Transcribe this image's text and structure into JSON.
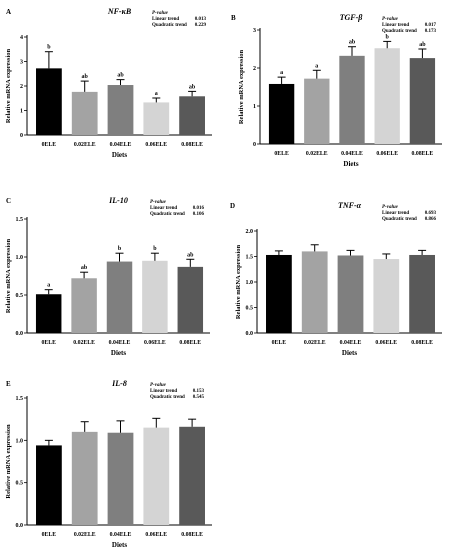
{
  "chart_data": [
    {
      "type": "bar",
      "panel_letter": "A",
      "title": "NF-κB",
      "ylabel": "Relative mRNA expression",
      "xlabel": "Diets",
      "categories": [
        "0ELE",
        "0.02ELE",
        "0.04ELE",
        "0.06ELE",
        "0.08ELE"
      ],
      "values": [
        2.72,
        1.76,
        2.04,
        1.33,
        1.58
      ],
      "errors": [
        0.68,
        0.44,
        0.22,
        0.18,
        0.2
      ],
      "letters": [
        "b",
        "ab",
        "ab",
        "a",
        "ab"
      ],
      "ylim": [
        0,
        4
      ],
      "yticks": [
        "0",
        "1",
        "2",
        "3",
        "4"
      ],
      "pvalue": {
        "header": "P-value",
        "rows": [
          {
            "label": "Linear trend",
            "value": "0.013"
          },
          {
            "label": "Quadratic trend",
            "value": "0.229"
          }
        ]
      }
    },
    {
      "type": "bar",
      "panel_letter": "B",
      "title": "TGF-β",
      "ylabel": "Relative mRNA expression",
      "xlabel": "Diets",
      "categories": [
        "0ELE",
        "0.02ELE",
        "0.04ELE",
        "0.06ELE",
        "0.08ELE"
      ],
      "values": [
        1.58,
        1.72,
        2.32,
        2.52,
        2.26
      ],
      "errors": [
        0.18,
        0.22,
        0.24,
        0.18,
        0.24
      ],
      "letters": [
        "a",
        "a",
        "ab",
        "b",
        "ab"
      ],
      "ylim": [
        0,
        3
      ],
      "yticks": [
        "0",
        "1",
        "2",
        "3"
      ],
      "pvalue": {
        "header": "P-value",
        "rows": [
          {
            "label": "Linear trend",
            "value": "0.017"
          },
          {
            "label": "Quadratic trend",
            "value": "0.173"
          }
        ]
      }
    },
    {
      "type": "bar",
      "panel_letter": "C",
      "title": "IL-10",
      "ylabel": "Relative mRNA expression",
      "xlabel": "Diets",
      "categories": [
        "0ELE",
        "0.02ELE",
        "0.04ELE",
        "0.06ELE",
        "0.08ELE"
      ],
      "values": [
        0.51,
        0.72,
        0.94,
        0.95,
        0.87
      ],
      "errors": [
        0.06,
        0.08,
        0.11,
        0.1,
        0.1
      ],
      "letters": [
        "a",
        "ab",
        "b",
        "b",
        "ab"
      ],
      "ylim": [
        0,
        1.5
      ],
      "yticks": [
        "0.0",
        "0.5",
        "1.0",
        "1.5"
      ],
      "pvalue": {
        "header": "P-value",
        "rows": [
          {
            "label": "Linear trend",
            "value": "0.016"
          },
          {
            "label": "Quadratic trend",
            "value": "0.106"
          }
        ]
      }
    },
    {
      "type": "bar",
      "panel_letter": "D",
      "title": "TNF-α",
      "ylabel": "Relative mRNA expression",
      "xlabel": "Diets",
      "categories": [
        "0ELE",
        "0.02ELE",
        "0.04ELE",
        "0.06ELE",
        "0.08ELE"
      ],
      "values": [
        1.53,
        1.6,
        1.52,
        1.45,
        1.53
      ],
      "errors": [
        0.08,
        0.13,
        0.1,
        0.1,
        0.09
      ],
      "letters": [],
      "ylim": [
        0,
        2.0
      ],
      "yticks": [
        "0.0",
        "0.5",
        "1.0",
        "1.5",
        "2.0"
      ],
      "pvalue": {
        "header": "P-value",
        "rows": [
          {
            "label": "Linear trend",
            "value": "0.693"
          },
          {
            "label": "Quadratic trend",
            "value": "0.866"
          }
        ]
      }
    },
    {
      "type": "bar",
      "panel_letter": "E",
      "title": "IL-8",
      "ylabel": "Relative mRNA expression",
      "xlabel": "Diets",
      "categories": [
        "0ELE",
        "0.02ELE",
        "0.04ELE",
        "0.06ELE",
        "0.08ELE"
      ],
      "values": [
        0.94,
        1.1,
        1.09,
        1.15,
        1.16
      ],
      "errors": [
        0.06,
        0.12,
        0.14,
        0.11,
        0.09
      ],
      "letters": [],
      "ylim": [
        0,
        1.5
      ],
      "yticks": [
        "0.0",
        "0.5",
        "1.0",
        "1.5"
      ],
      "pvalue": {
        "header": "P-value",
        "rows": [
          {
            "label": "Linear trend",
            "value": "0.153"
          },
          {
            "label": "Quadratic trend",
            "value": "0.545"
          }
        ]
      }
    }
  ],
  "bar_colors": [
    "#000000",
    "#a3a3a3",
    "#7f7f7f",
    "#d4d4d4",
    "#595959"
  ]
}
